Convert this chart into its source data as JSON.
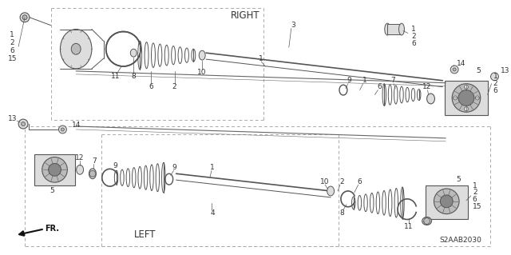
{
  "bg_color": "#ffffff",
  "fig_width": 6.4,
  "fig_height": 3.19,
  "dpi": 100,
  "label_right": "RIGHT",
  "label_left": "LEFT",
  "label_fr": "FR.",
  "label_code": "S2AAB2030",
  "line_color": "#333333",
  "light_gray": "#aaaaaa",
  "part_color": "#555555",
  "fill_light": "#dddddd",
  "fill_med": "#bbbbbb",
  "fill_dark": "#888888"
}
